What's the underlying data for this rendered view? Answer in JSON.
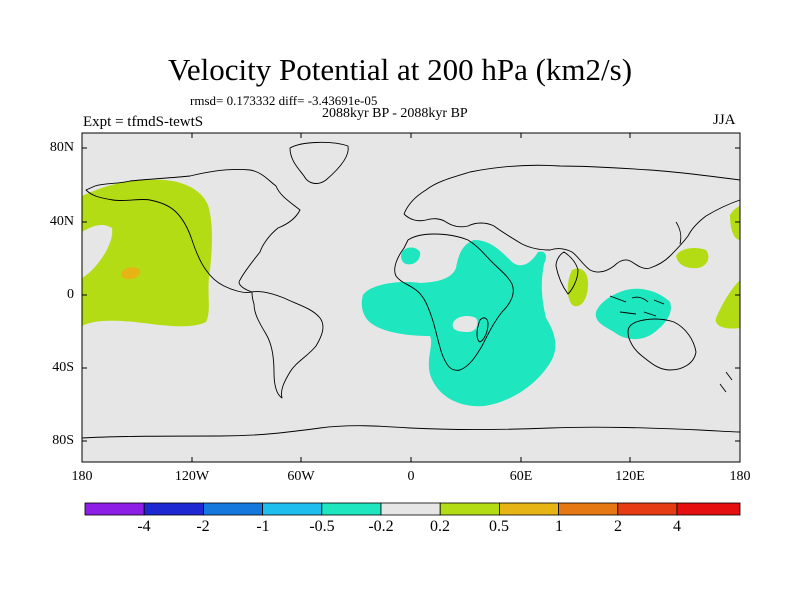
{
  "title": "Velocity Potential at 200 hPa (km2/s)",
  "stats": "rmsd= 0.173332 diff= -3.43691e-05",
  "period": "2088kyr BP - 2088kyr BP",
  "experiment": "Expt = tfmdS-tewtS",
  "season": "JJA",
  "lat_labels": [
    "80N",
    "40N",
    "0",
    "40S",
    "80S"
  ],
  "lon_labels": [
    "180",
    "120W",
    "60W",
    "0",
    "60E",
    "120E",
    "180"
  ],
  "colorbar": {
    "labels": [
      "-4",
      "-2",
      "-1",
      "-0.5",
      "-0.2",
      "0.2",
      "0.5",
      "1",
      "2",
      "4"
    ],
    "colors": [
      "#8c1ee6",
      "#1e28d2",
      "#1478dc",
      "#1ebeee",
      "#1ee6be",
      "#e6e6e6",
      "#b4dc14",
      "#e6b414",
      "#e67814",
      "#e63c14",
      "#e60f0f"
    ]
  },
  "colors": {
    "background": "#e6e6e6",
    "positive": "#b4dc14",
    "positive_strong": "#e6b414",
    "negative": "#1ee6be",
    "coast": "#000000"
  }
}
